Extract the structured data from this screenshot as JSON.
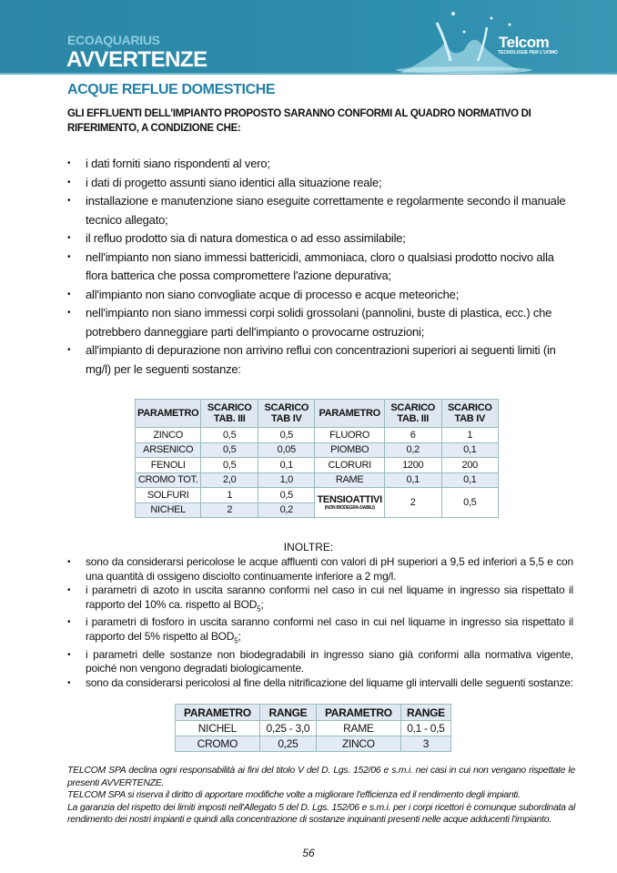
{
  "header": {
    "brand": "ECOAQUARIUS",
    "title": "AVVERTENZE",
    "logo": "Telcom",
    "logo_tagline": "TECNOLOGIE PER L'UOMO"
  },
  "section_title": "ACQUE REFLUE DOMESTICHE",
  "intro": "GLI EFFLUENTI DELL'IMPIANTO PROPOSTO SARANNO CONFORMI AL QUADRO NORMATIVO DI RIFERIMENTO, A CONDIZIONE CHE:",
  "conditions": [
    "i dati forniti siano rispondenti al vero;",
    "i dati di progetto assunti siano identici alla situazione reale;",
    "installazione e manutenzione siano eseguite correttamente e regolarmente secondo il manuale tecnico allegato;",
    "il  refluo prodotto sia  di natura domestica o ad esso assimilabile;",
    "nell'impianto non siano immessi battericidi, ammoniaca, cloro o qualsiasi prodotto nocivo alla flora batterica che possa compromettere l'azione depurativa;",
    "all'impianto non siano convogliate acque di processo e acque meteoriche;",
    "nell'impianto non siano immessi corpi solidi grossolani (pannolini, buste di plastica, ecc.) che potrebbero danneggiare parti dell'impianto o provocarne ostruzioni;",
    "all'impianto di depurazione non arrivino reflui con concentrazioni superiori ai seguenti limiti (in mg/l) per le seguenti sostanze:"
  ],
  "limits_table": {
    "headers": [
      "PARAMETRO",
      "SCARICO TAB. III",
      "SCARICO TAB IV",
      "PARAMETRO",
      "SCARICO TAB. III",
      "SCARICO TAB IV"
    ],
    "rows": [
      [
        "ZINCO",
        "0,5",
        "0,5",
        "FLUORO",
        "6",
        "1"
      ],
      [
        "ARSENICO",
        "0,5",
        "0,05",
        "PIOMBO",
        "0,2",
        "0,1"
      ],
      [
        "FENOLI",
        "0,5",
        "0,1",
        "CLORURI",
        "1200",
        "200"
      ],
      [
        "CROMO TOT.",
        "2,0",
        "1,0",
        "RAME",
        "0,1",
        "0,1"
      ],
      [
        "SOLFURI",
        "1",
        "0,5",
        "TENSIOATTIVI",
        "2",
        "0,5"
      ],
      [
        "NICHEL",
        "2",
        "0,2"
      ]
    ],
    "tensioattivi_note": "(NON BIODEGRA-DABILI)"
  },
  "inoltre": "INOLTRE:",
  "notes": [
    {
      "text": "sono da considerarsi pericolose le acque affluenti con valori di pH superiori a 9,5 ed inferiori a 5,5 e con una quantità di ossigeno disciolto continuamente inferiore a 2 mg/l."
    },
    {
      "text": "i parametri di azoto in uscita saranno conformi nel caso in cui nel liquame in ingresso sia rispettato il rapporto del 10% ca. rispetto al BOD",
      "sub": "5",
      "tail": ";"
    },
    {
      "text": "i parametri di fosforo in uscita saranno conformi nel caso in cui nel liquame in ingresso sia rispettato il rapporto del 5% rispetto al BOD",
      "sub": "5",
      "tail": ";"
    },
    {
      "text": "i parametri delle sostanze non biodegradabili in ingresso siano già conformi alla normativa vigente, poiché non vengono degradati biologicamente."
    },
    {
      "text": "sono da considerarsi pericolosi al fine della nitrificazione del liquame gli intervalli delle seguenti sostanze:"
    }
  ],
  "range_table": {
    "headers": [
      "PARAMETRO",
      "RANGE",
      "PARAMETRO",
      "RANGE"
    ],
    "rows": [
      [
        "NICHEL",
        "0,25 - 3,0",
        "RAME",
        "0,1 - 0,5"
      ],
      [
        "CROMO",
        "0,25",
        "ZINCO",
        "3"
      ]
    ]
  },
  "footer": [
    "TELCOM SPA declina ogni responsabilità ai fini del titolo V del D. Lgs. 152/06 e s.m.i. nei casi in cui non vengano rispettate le presenti AVVERTENZE.",
    "TELCOM SPA si riserva il diritto di apportare modifiche volte a migliorare l'efficienza ed il rendimento degli impianti.",
    "La garanzia del rispetto dei limiti imposti nell'Allegato 5 del D. Lgs. 152/06 e s.m.i. per i corpi ricettori è comunque subordinata al rendimento dei nostri impianti e quindi alla concentrazione di sostanze inquinanti presenti nelle acque adducenti l'impianto."
  ],
  "page_number": "56",
  "colors": {
    "band": "#2b86a5",
    "section_title": "#1f7fa6",
    "table_header": "#dfe7f0",
    "table_alt": "#e3ecf6"
  }
}
